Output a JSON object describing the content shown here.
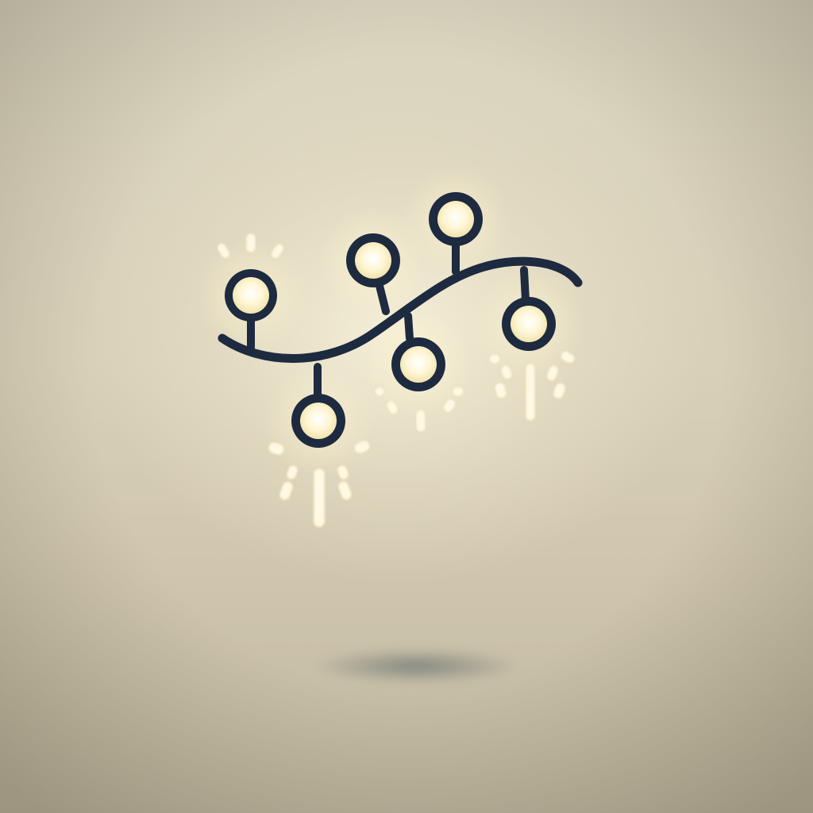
{
  "scene": {
    "subject": "string-lights-icon",
    "bulb_count": 6,
    "colors": {
      "background": "#d9d2bc",
      "wire": "#1d2a3f",
      "bulb_glow": "#fff6d6",
      "sparkle": "#fff8e2",
      "shadow": "#4b5b62"
    }
  }
}
